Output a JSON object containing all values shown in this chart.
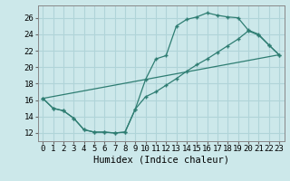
{
  "title": "",
  "xlabel": "Humidex (Indice chaleur)",
  "bg_color": "#cce8ea",
  "grid_color": "#b0d4d8",
  "line_color": "#2e7d72",
  "marker": "+",
  "xlim": [
    -0.5,
    23.5
  ],
  "ylim": [
    11.0,
    27.5
  ],
  "xticks": [
    0,
    1,
    2,
    3,
    4,
    5,
    6,
    7,
    8,
    9,
    10,
    11,
    12,
    13,
    14,
    15,
    16,
    17,
    18,
    19,
    20,
    21,
    22,
    23
  ],
  "yticks": [
    12,
    14,
    16,
    18,
    20,
    22,
    24,
    26
  ],
  "line1_x": [
    0,
    1,
    2,
    3,
    4,
    5,
    6,
    7,
    8,
    9,
    10,
    11,
    12,
    13,
    14,
    15,
    16,
    17,
    18,
    19,
    20,
    21,
    22,
    23
  ],
  "line1_y": [
    16.2,
    15.0,
    14.7,
    13.8,
    12.4,
    12.1,
    12.1,
    12.0,
    12.1,
    14.9,
    18.5,
    21.0,
    21.4,
    25.0,
    25.8,
    26.1,
    26.6,
    26.3,
    26.1,
    26.0,
    24.5,
    24.0,
    22.7,
    21.5
  ],
  "line2_x": [
    0,
    1,
    2,
    3,
    4,
    5,
    6,
    7,
    8,
    9,
    10,
    11,
    12,
    13,
    14,
    15,
    16,
    17,
    18,
    19,
    20,
    21,
    22,
    23
  ],
  "line2_y": [
    16.2,
    15.0,
    14.7,
    13.8,
    12.4,
    12.1,
    12.1,
    12.0,
    12.1,
    14.9,
    16.4,
    17.0,
    17.8,
    18.6,
    19.5,
    20.3,
    21.0,
    21.8,
    22.6,
    23.4,
    24.4,
    23.9,
    22.7,
    21.5
  ],
  "line3_x": [
    0,
    23
  ],
  "line3_y": [
    16.2,
    21.5
  ],
  "tick_fontsize": 6.5,
  "xlabel_fontsize": 7.5
}
